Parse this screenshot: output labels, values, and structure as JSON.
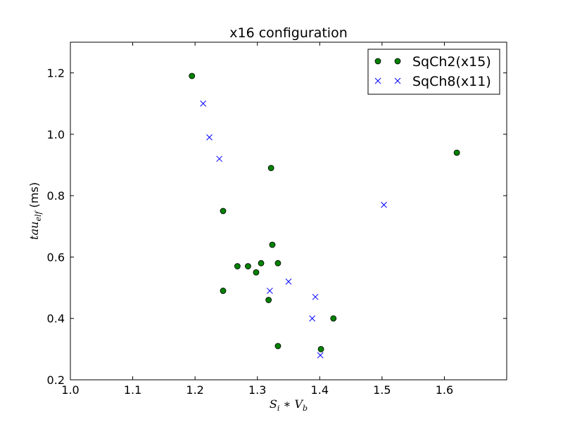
{
  "chart_data": {
    "type": "scatter",
    "title": "x16 configuration",
    "xlabel": "S_i * V_b",
    "ylabel": "tau_elf (ms)",
    "xlim": [
      1.0,
      1.7
    ],
    "ylim": [
      0.2,
      1.3
    ],
    "xticks": [
      "1.0",
      "1.1",
      "1.2",
      "1.3",
      "1.4",
      "1.5",
      "1.6"
    ],
    "yticks": [
      "0.2",
      "0.4",
      "0.6",
      "0.8",
      "1.0",
      "1.2"
    ],
    "grid": false,
    "legend_position": "top-right",
    "series": [
      {
        "name": "SqCh2(x15)",
        "marker": "circle",
        "color": "#008000",
        "points": [
          [
            1.195,
            1.19
          ],
          [
            1.245,
            0.75
          ],
          [
            1.245,
            0.49
          ],
          [
            1.268,
            0.57
          ],
          [
            1.285,
            0.57
          ],
          [
            1.298,
            0.55
          ],
          [
            1.306,
            0.58
          ],
          [
            1.318,
            0.46
          ],
          [
            1.322,
            0.89
          ],
          [
            1.324,
            0.64
          ],
          [
            1.333,
            0.58
          ],
          [
            1.333,
            0.31
          ],
          [
            1.402,
            0.3
          ],
          [
            1.422,
            0.4
          ],
          [
            1.62,
            0.94
          ]
        ]
      },
      {
        "name": "SqCh8(x11)",
        "marker": "x",
        "color": "#0000ff",
        "points": [
          [
            1.213,
            1.1
          ],
          [
            1.223,
            0.99
          ],
          [
            1.239,
            0.92
          ],
          [
            1.32,
            0.49
          ],
          [
            1.35,
            0.52
          ],
          [
            1.388,
            0.4
          ],
          [
            1.393,
            0.47
          ],
          [
            1.401,
            0.28
          ],
          [
            1.503,
            0.77
          ]
        ]
      }
    ]
  }
}
